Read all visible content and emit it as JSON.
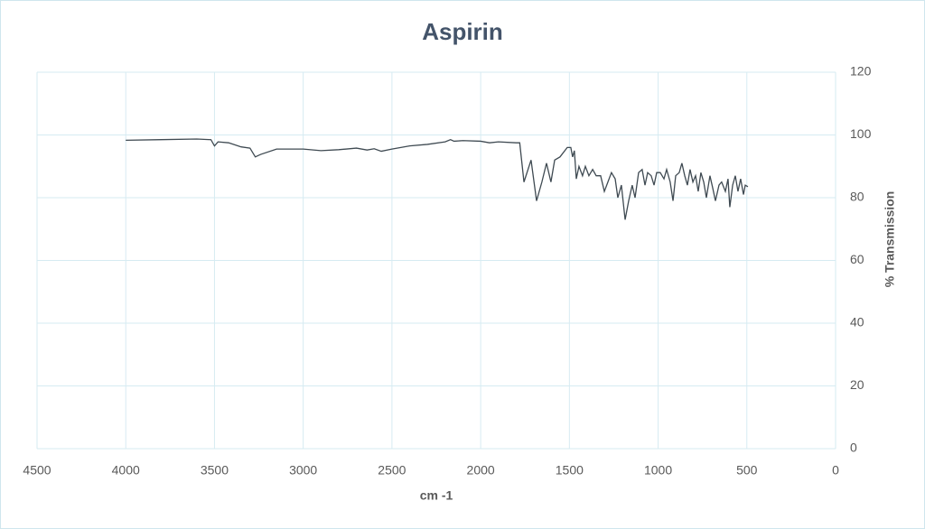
{
  "chart_data": {
    "type": "line",
    "title": "Aspirin",
    "x_label": "cm -1",
    "y_label": "% Transmission",
    "x": [
      4000,
      3800,
      3600,
      3520,
      3500,
      3480,
      3420,
      3350,
      3300,
      3270,
      3240,
      3150,
      3000,
      2900,
      2800,
      2700,
      2640,
      2600,
      2560,
      2500,
      2400,
      2300,
      2200,
      2170,
      2150,
      2100,
      2000,
      1950,
      1900,
      1800,
      1780,
      1756,
      1716,
      1685,
      1655,
      1629,
      1604,
      1583,
      1553,
      1512,
      1492,
      1482,
      1472,
      1461,
      1446,
      1426,
      1410,
      1390,
      1369,
      1349,
      1324,
      1303,
      1283,
      1263,
      1242,
      1227,
      1207,
      1186,
      1166,
      1146,
      1130,
      1110,
      1090,
      1074,
      1059,
      1039,
      1023,
      1008,
      988,
      967,
      952,
      932,
      916,
      901,
      881,
      866,
      850,
      835,
      820,
      804,
      789,
      774,
      759,
      743,
      728,
      708,
      692,
      677,
      657,
      642,
      621,
      606,
      596,
      580,
      565,
      550,
      535,
      519,
      509,
      494
    ],
    "series": [
      {
        "name": "Aspirin",
        "color": "#3f4a52",
        "values": [
          98.3,
          98.5,
          98.7,
          98.5,
          96.5,
          97.8,
          97.5,
          96.2,
          95.8,
          93.0,
          93.8,
          95.5,
          95.5,
          95.0,
          95.3,
          95.8,
          95.2,
          95.6,
          94.8,
          95.5,
          96.5,
          97.0,
          97.8,
          98.5,
          98.0,
          98.2,
          98.0,
          97.5,
          97.8,
          97.5,
          97.5,
          85,
          92,
          79,
          85,
          91,
          85,
          92,
          93,
          96,
          96,
          93,
          95,
          86,
          90,
          87,
          90,
          87,
          89,
          87,
          87,
          82,
          85,
          88,
          86,
          80,
          84,
          73,
          79,
          84,
          80,
          88,
          89,
          84,
          88,
          87,
          84,
          88,
          88,
          86,
          89,
          85,
          79,
          87,
          88,
          91,
          87,
          84,
          89,
          85,
          87,
          82,
          88,
          85,
          80,
          87,
          83,
          79,
          84,
          85,
          82,
          86,
          77,
          84,
          87,
          82,
          86,
          81,
          84,
          83.5
        ]
      }
    ],
    "xlim": [
      4500,
      0
    ],
    "xticks": [
      4500,
      4000,
      3500,
      3000,
      2500,
      2000,
      1500,
      1000,
      500,
      0
    ],
    "ylim": [
      0,
      120
    ],
    "yticks": [
      0,
      20,
      40,
      60,
      80,
      100,
      120
    ],
    "grid": true
  }
}
